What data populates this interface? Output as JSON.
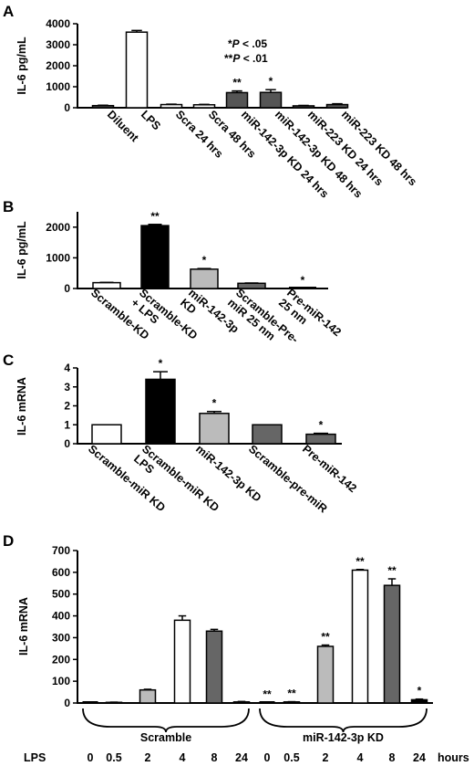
{
  "chart_data": [
    {
      "panel": "A",
      "type": "bar",
      "ylabel": "IL-6 pg/mL",
      "ylim": [
        0,
        4000
      ],
      "yticks": [
        0,
        1000,
        2000,
        3000,
        4000
      ],
      "categories": [
        "Diluent",
        "LPS",
        "Scra 24 hrs",
        "Scra 48 hrs",
        "miR-142-3p KD 24 hrs",
        "miR-142-3p KD 48 hrs",
        "miR-223 KD 24 hrs",
        "miR-223 KD 48 hrs"
      ],
      "values": [
        100,
        3600,
        150,
        140,
        720,
        730,
        90,
        150
      ],
      "errors": [
        20,
        80,
        20,
        20,
        80,
        130,
        20,
        40
      ],
      "colors": [
        "#555555",
        "#ffffff",
        "#ffffff",
        "#ffffff",
        "#555555",
        "#555555",
        "#555555",
        "#555555"
      ],
      "significance": [
        "",
        "",
        "",
        "",
        "**",
        "*",
        "",
        ""
      ],
      "annotations": [
        {
          "prefix": "*",
          "italic": "P",
          "suffix": " < .05"
        },
        {
          "prefix": "**",
          "italic": "P",
          "suffix": " < .01"
        }
      ]
    },
    {
      "panel": "B",
      "type": "bar",
      "ylabel": "IL-6 pg/mL",
      "ylim": [
        0,
        2500
      ],
      "yticks": [
        0,
        1000,
        2000
      ],
      "categories": [
        [
          "Scramble-KD"
        ],
        [
          "Scramble-KD",
          "+ LPS"
        ],
        [
          "miR-142-3p",
          "KD"
        ],
        [
          "Scramble-Pre-",
          "miR 25 nm"
        ],
        [
          "Pre-miR-142",
          "25 nm"
        ]
      ],
      "values": [
        190,
        2050,
        630,
        170,
        0
      ],
      "errors": [
        10,
        40,
        20,
        10,
        0
      ],
      "colors": [
        "#ffffff",
        "#000000",
        "#bbbbbb",
        "#666666",
        "#666666"
      ],
      "significance": [
        "",
        "**",
        "*",
        "",
        "*"
      ]
    },
    {
      "panel": "C",
      "type": "bar",
      "ylabel": "IL-6 mRNA",
      "ylim": [
        0,
        4
      ],
      "yticks": [
        0,
        1,
        2,
        3,
        4
      ],
      "categories": [
        [
          "Scramble-miR KD"
        ],
        [
          "Scramble-miR KD",
          "LPS"
        ],
        [
          "miR-142-3p KD"
        ],
        [
          "Scramble-pre-miR"
        ],
        [
          "Pre-miR-142"
        ]
      ],
      "values": [
        1.0,
        3.4,
        1.6,
        1.0,
        0.5
      ],
      "errors": [
        0,
        0.4,
        0.1,
        0,
        0.05
      ],
      "colors": [
        "#ffffff",
        "#000000",
        "#bbbbbb",
        "#666666",
        "#666666"
      ],
      "significance": [
        "",
        "*",
        "*",
        "",
        "*"
      ]
    },
    {
      "panel": "D",
      "type": "bar",
      "ylabel": "IL-6 mRNA",
      "ylim": [
        0,
        700
      ],
      "yticks": [
        0,
        100,
        200,
        300,
        400,
        500,
        600,
        700
      ],
      "x_prefix": "LPS",
      "x_suffix": "hours",
      "timepoints": [
        "0",
        "0.5",
        "2",
        "4",
        "8",
        "24"
      ],
      "colors": [
        "#000000",
        "#222222",
        "#bbbbbb",
        "#ffffff",
        "#666666",
        "#000000"
      ],
      "series": [
        {
          "name": "Scramble",
          "values": [
            0,
            3,
            60,
            380,
            330,
            5
          ],
          "errors": [
            0,
            1,
            3,
            20,
            8,
            2
          ],
          "significance": [
            "",
            "",
            "",
            "",
            "",
            ""
          ]
        },
        {
          "name": "miR-142-3p KD",
          "values": [
            2,
            5,
            260,
            610,
            540,
            15
          ],
          "errors": [
            1,
            1,
            6,
            3,
            30,
            3
          ],
          "significance": [
            "**",
            "**",
            "**",
            "**",
            "**",
            "*"
          ]
        }
      ]
    }
  ]
}
